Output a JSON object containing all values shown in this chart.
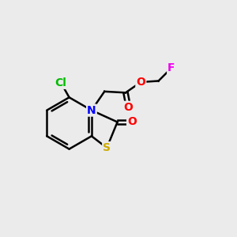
{
  "background_color": "#ebebeb",
  "atom_colors": {
    "C": "#000000",
    "N": "#0000ff",
    "O": "#ff0000",
    "S": "#ccaa00",
    "Cl": "#00bb00",
    "F": "#ee00ee"
  },
  "bond_color": "#000000",
  "bond_width": 1.8,
  "figsize": [
    3.0,
    3.0
  ],
  "dpi": 100
}
